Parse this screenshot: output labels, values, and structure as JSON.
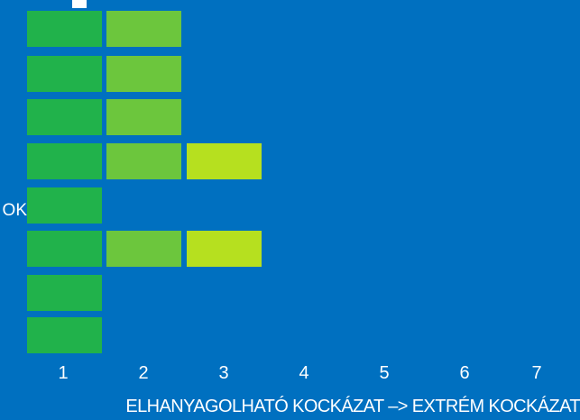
{
  "chart_data": {
    "type": "heatmap",
    "x_ticks": [
      "1",
      "2",
      "3",
      "4",
      "5",
      "6",
      "7"
    ],
    "row_label_fragment": "OK",
    "caption": "ELHANYAGOLHATÓ KOCKÁZAT –> EXTRÉM KOCKÁZAT",
    "rows": [
      {
        "filled": 2
      },
      {
        "filled": 2
      },
      {
        "filled": 2
      },
      {
        "filled": 3
      },
      {
        "filled": 1
      },
      {
        "filled": 3
      },
      {
        "filled": 1
      },
      {
        "filled": 1
      }
    ],
    "level_colors": [
      "#21b24b",
      "#6cc63d",
      "#b6e01f"
    ],
    "background_color": "#0070c0"
  }
}
